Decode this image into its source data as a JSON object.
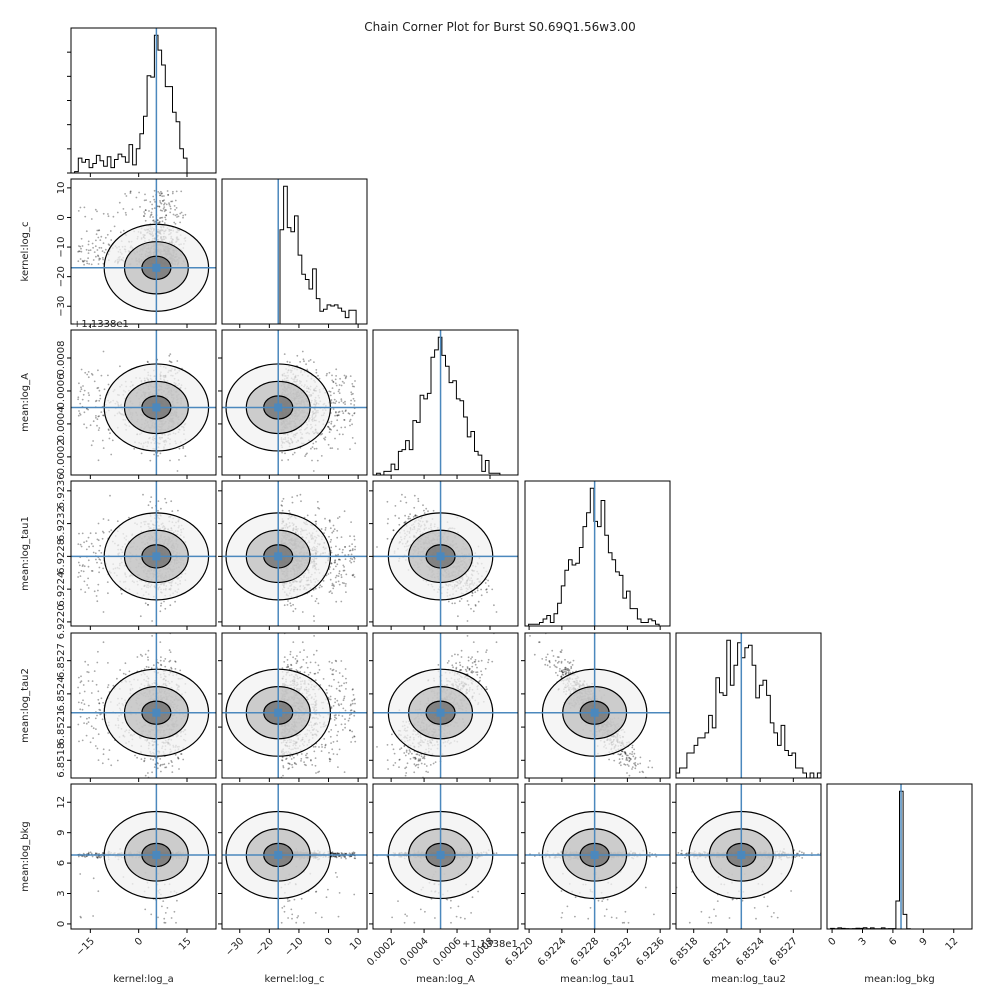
{
  "chart_data": {
    "type": "scatter",
    "title": "Chain Corner Plot for Burst S0.69Q1.56w3.00",
    "params": [
      {
        "name": "kernel:log_a",
        "truth": 5.5,
        "range": [
          -21,
          24
        ],
        "ticks": [
          -15,
          0,
          15
        ],
        "tick_labels": [
          "−15",
          "0",
          "15"
        ],
        "offset": ""
      },
      {
        "name": "kernel:log_c",
        "truth": -17,
        "range": [
          -36,
          13
        ],
        "ticks": [
          -30,
          -20,
          -10,
          0,
          10
        ],
        "tick_labels": [
          "−30",
          "−20",
          "−10",
          "0",
          "10"
        ],
        "offset": ""
      },
      {
        "name": "mean:log_A",
        "truth": 0.0005,
        "range": [
          9e-05,
          0.00097
        ],
        "ticks": [
          0.0002,
          0.0004,
          0.0006,
          0.0008
        ],
        "tick_labels": [
          "0.0002",
          "0.0004",
          "0.0006",
          "0.0008"
        ],
        "offset": "+1.1338e1"
      },
      {
        "name": "mean:log_tau1",
        "truth": 6.9228,
        "range": [
          6.92195,
          6.92372
        ],
        "ticks": [
          6.922,
          6.9224,
          6.9228,
          6.9232,
          6.9236
        ],
        "tick_labels": [
          "6.9220",
          "6.9224",
          "6.9228",
          "6.9232",
          "6.9236"
        ],
        "offset": ""
      },
      {
        "name": "mean:log_tau2",
        "truth": 6.85223,
        "range": [
          6.85164,
          6.85295
        ],
        "ticks": [
          6.8518,
          6.8521,
          6.8524,
          6.8527
        ],
        "tick_labels": [
          "6.8518",
          "6.8521",
          "6.8524",
          "6.8527"
        ],
        "offset": ""
      },
      {
        "name": "mean:log_bkg",
        "truth": 6.8,
        "range": [
          -0.5,
          13.8
        ],
        "ticks": [
          0,
          3,
          6,
          9,
          12
        ],
        "tick_labels": [
          "0",
          "3",
          "6",
          "9",
          "12"
        ],
        "offset": ""
      }
    ],
    "truth_color": "#4b88bd",
    "grid": false
  }
}
